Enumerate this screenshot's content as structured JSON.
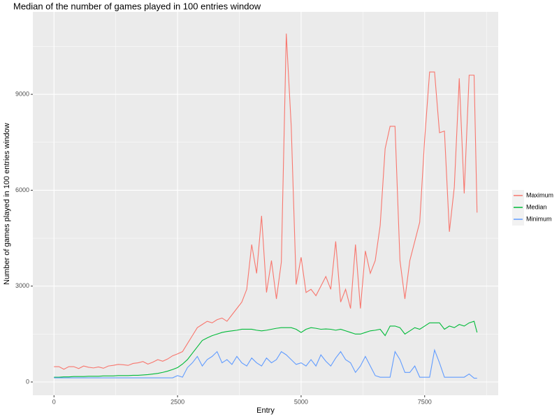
{
  "chart_data": {
    "type": "line",
    "title": "Median of the number of games played in 100 entries window",
    "x_label": "Entry",
    "y_label": "Number of games played in 100 entries window",
    "x": [
      0,
      100,
      200,
      300,
      400,
      500,
      600,
      700,
      800,
      900,
      1000,
      1100,
      1200,
      1300,
      1400,
      1500,
      1600,
      1700,
      1800,
      1900,
      2000,
      2100,
      2200,
      2300,
      2400,
      2500,
      2600,
      2700,
      2800,
      2900,
      3000,
      3100,
      3200,
      3300,
      3400,
      3500,
      3600,
      3700,
      3800,
      3900,
      4000,
      4100,
      4200,
      4300,
      4400,
      4500,
      4600,
      4700,
      4800,
      4900,
      5000,
      5100,
      5200,
      5300,
      5400,
      5500,
      5600,
      5700,
      5800,
      5900,
      6000,
      6100,
      6200,
      6300,
      6400,
      6500,
      6600,
      6700,
      6800,
      6900,
      7000,
      7100,
      7200,
      7300,
      7400,
      7500,
      7600,
      7700,
      7800,
      7900,
      8000,
      8100,
      8200,
      8300,
      8400,
      8500,
      8560
    ],
    "series": [
      {
        "name": "Maximum",
        "color": "#F8766D",
        "values": [
          480,
          480,
          400,
          480,
          480,
          420,
          500,
          460,
          440,
          470,
          430,
          500,
          520,
          550,
          540,
          520,
          580,
          600,
          640,
          560,
          620,
          700,
          650,
          720,
          820,
          880,
          950,
          1200,
          1450,
          1700,
          1800,
          1900,
          1850,
          1950,
          2000,
          1900,
          2100,
          2300,
          2500,
          2900,
          4300,
          3400,
          5200,
          2800,
          3800,
          2600,
          3750,
          10900,
          8000,
          3050,
          3900,
          2800,
          2900,
          2700,
          3000,
          3300,
          2900,
          4400,
          2500,
          2900,
          2300,
          4300,
          2300,
          4100,
          3400,
          3800,
          4900,
          7300,
          8000,
          8000,
          3800,
          2600,
          3800,
          4400,
          5000,
          7600,
          9700,
          9700,
          7800,
          7850,
          4700,
          6100,
          9500,
          5900,
          9600,
          9600,
          5300
        ]
      },
      {
        "name": "Median",
        "color": "#00BA38",
        "values": [
          150,
          150,
          160,
          160,
          170,
          170,
          170,
          180,
          180,
          180,
          190,
          190,
          190,
          200,
          200,
          200,
          210,
          210,
          220,
          230,
          250,
          270,
          300,
          340,
          390,
          450,
          560,
          700,
          900,
          1100,
          1300,
          1380,
          1450,
          1500,
          1550,
          1580,
          1600,
          1620,
          1650,
          1650,
          1650,
          1620,
          1600,
          1620,
          1650,
          1680,
          1700,
          1700,
          1700,
          1650,
          1550,
          1650,
          1700,
          1680,
          1650,
          1660,
          1650,
          1620,
          1650,
          1600,
          1550,
          1500,
          1500,
          1550,
          1600,
          1620,
          1650,
          1450,
          1750,
          1750,
          1700,
          1500,
          1600,
          1700,
          1650,
          1750,
          1850,
          1850,
          1850,
          1650,
          1750,
          1700,
          1800,
          1750,
          1850,
          1900,
          1550
        ]
      },
      {
        "name": "Minimum",
        "color": "#619CFF",
        "values": [
          130,
          130,
          130,
          130,
          130,
          130,
          130,
          130,
          130,
          130,
          130,
          130,
          130,
          130,
          130,
          130,
          130,
          130,
          130,
          130,
          130,
          130,
          130,
          130,
          130,
          200,
          150,
          450,
          600,
          800,
          500,
          700,
          800,
          950,
          600,
          700,
          550,
          800,
          600,
          500,
          750,
          600,
          500,
          750,
          600,
          700,
          950,
          850,
          700,
          550,
          600,
          500,
          700,
          500,
          850,
          650,
          500,
          750,
          950,
          700,
          600,
          300,
          500,
          800,
          500,
          200,
          150,
          150,
          150,
          950,
          700,
          300,
          300,
          500,
          150,
          150,
          150,
          1000,
          600,
          150,
          150,
          150,
          150,
          150,
          250,
          120,
          120
        ]
      }
    ],
    "xlim": [
      -428,
      8988
    ],
    "ylim": [
      -415,
      11580
    ],
    "xticks": [
      0,
      2500,
      5000,
      7500
    ],
    "yticks": [
      0,
      3000,
      6000,
      9000
    ],
    "grid": true,
    "legend": "right"
  }
}
